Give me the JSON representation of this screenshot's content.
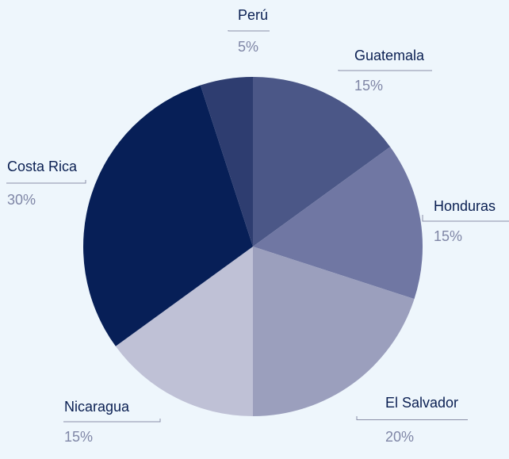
{
  "chart_data": {
    "type": "pie",
    "title": "",
    "start_angle_deg": 0,
    "direction": "clockwise",
    "slices": [
      {
        "name": "Guatemala",
        "label": "Guatemala",
        "value": 15,
        "value_label": "15%",
        "color": "#4b5787"
      },
      {
        "name": "Honduras",
        "label": "Honduras",
        "value": 15,
        "value_label": "15%",
        "color": "#7077a3"
      },
      {
        "name": "El Salvador",
        "label": "El Salvador",
        "value": 20,
        "value_label": "20%",
        "color": "#9b9fbd"
      },
      {
        "name": "Nicaragua",
        "label": "Nicaragua",
        "value": 15,
        "value_label": "15%",
        "color": "#bfc1d6"
      },
      {
        "name": "Costa Rica",
        "label": "Costa Rica",
        "value": 30,
        "value_label": "30%",
        "color": "#071f57"
      },
      {
        "name": "Perú",
        "label": "Perú",
        "value": 5,
        "value_label": "5%",
        "color": "#2e3d70"
      }
    ],
    "legend": "none"
  }
}
